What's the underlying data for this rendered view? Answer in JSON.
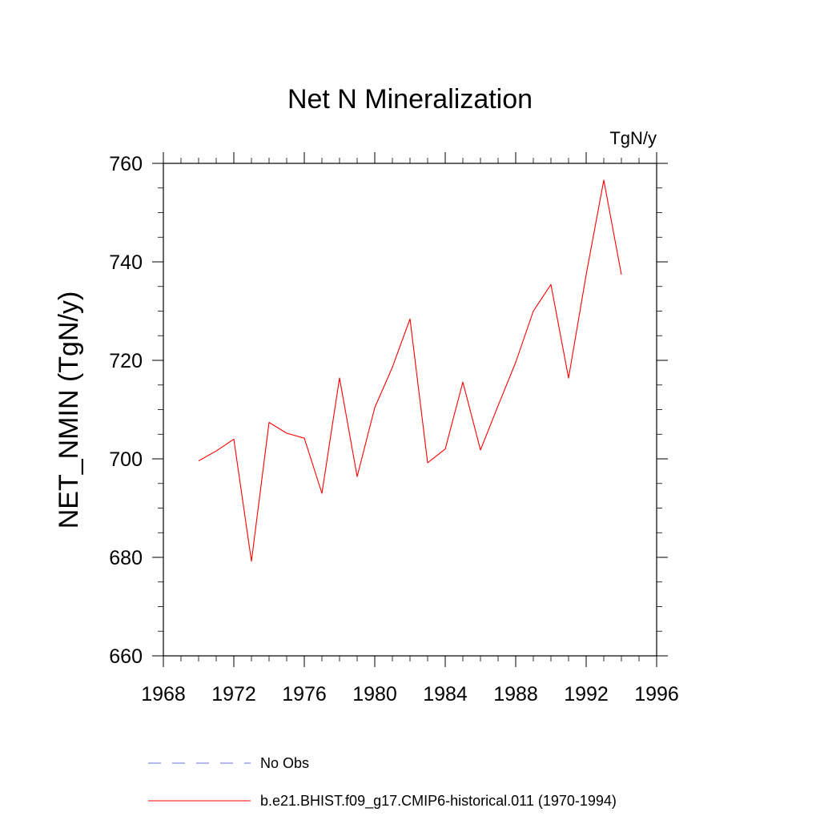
{
  "chart_data": {
    "type": "line",
    "title": "Net N Mineralization",
    "units": "TgN/y",
    "ylabel": "NET_NMIN  (TgN/y)",
    "xlabel": "",
    "xlim": [
      1968,
      1996
    ],
    "ylim": [
      660,
      760
    ],
    "xticks": [
      "1968",
      "1972",
      "1976",
      "1980",
      "1984",
      "1988",
      "1992",
      "1996"
    ],
    "yticks": [
      "660",
      "680",
      "700",
      "720",
      "740",
      "760"
    ],
    "grid": false,
    "legend_position": "bottom",
    "series": [
      {
        "name": "b.e21.BHIST.f09_g17.CMIP6-historical.011 (1970-1994)",
        "color": "#ff0000",
        "style": "solid",
        "x": [
          1970,
          1971,
          1972,
          1973,
          1974,
          1975,
          1976,
          1977,
          1978,
          1979,
          1980,
          1981,
          1982,
          1983,
          1984,
          1985,
          1986,
          1987,
          1988,
          1989,
          1990,
          1991,
          1992,
          1993,
          1994
        ],
        "y": [
          699.6,
          701.6,
          704.0,
          679.2,
          707.4,
          705.2,
          704.2,
          693.0,
          716.4,
          696.4,
          710.4,
          718.6,
          728.4,
          699.2,
          702.0,
          715.6,
          701.8,
          710.8,
          719.6,
          730.0,
          735.4,
          716.4,
          737.4,
          756.6,
          737.4
        ]
      }
    ],
    "legend": [
      {
        "label": "No Obs",
        "color": "#6f6fd8",
        "style": "dashed"
      },
      {
        "label": "b.e21.BHIST.f09_g17.CMIP6-historical.011 (1970-1994)",
        "color": "#ff0000",
        "style": "solid"
      }
    ]
  }
}
